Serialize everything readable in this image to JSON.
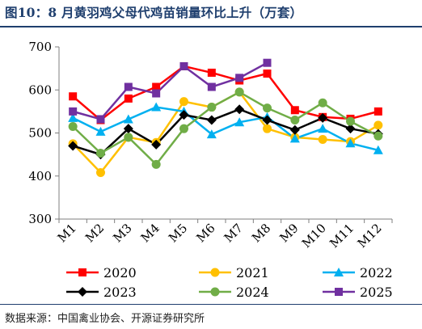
{
  "title": "图10：8 月黄羽鸡父母代鸡苗销量环比上升（万套）",
  "source": "数据来源：中国禽业协会、开源证券研究所",
  "chart_data": {
    "type": "line",
    "categories": [
      "M1",
      "M2",
      "M3",
      "M4",
      "M5",
      "M6",
      "M7",
      "M8",
      "M9",
      "M10",
      "M11",
      "M12"
    ],
    "ylim": [
      300,
      700
    ],
    "yticks": [
      300,
      400,
      500,
      600,
      700
    ],
    "grid": false,
    "legend_position": "bottom",
    "series": [
      {
        "name": "2020",
        "color": "#ff0000",
        "marker": "square",
        "values": [
          585,
          530,
          580,
          607,
          655,
          640,
          622,
          638,
          553,
          537,
          533,
          550
        ]
      },
      {
        "name": "2021",
        "color": "#ffc000",
        "marker": "circle",
        "values": [
          475,
          408,
          490,
          478,
          573,
          560,
          595,
          510,
          490,
          485,
          480,
          518
        ]
      },
      {
        "name": "2022",
        "color": "#00b0f0",
        "marker": "triangle",
        "values": [
          535,
          503,
          532,
          560,
          550,
          497,
          525,
          537,
          487,
          510,
          476,
          460
        ]
      },
      {
        "name": "2023",
        "color": "#000000",
        "marker": "diamond",
        "values": [
          470,
          450,
          510,
          473,
          542,
          530,
          555,
          530,
          507,
          535,
          510,
          498
        ]
      },
      {
        "name": "2024",
        "color": "#70ad47",
        "marker": "circle",
        "values": [
          515,
          453,
          490,
          427,
          510,
          560,
          595,
          558,
          530,
          570,
          527,
          493
        ]
      },
      {
        "name": "2025",
        "color": "#7030a0",
        "marker": "square",
        "values": [
          550,
          532,
          607,
          592,
          655,
          607,
          628,
          663,
          null,
          null,
          null,
          null
        ]
      }
    ]
  }
}
